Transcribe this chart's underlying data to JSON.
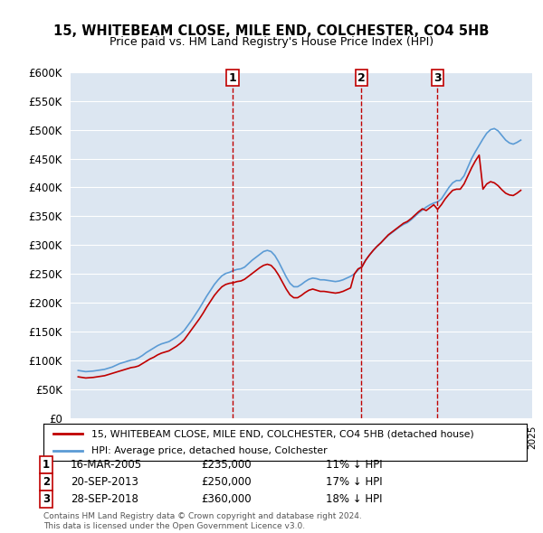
{
  "title": "15, WHITEBEAM CLOSE, MILE END, COLCHESTER, CO4 5HB",
  "subtitle": "Price paid vs. HM Land Registry's House Price Index (HPI)",
  "ylabel_ticks": [
    "£0",
    "£50K",
    "£100K",
    "£150K",
    "£200K",
    "£250K",
    "£300K",
    "£350K",
    "£400K",
    "£450K",
    "£500K",
    "£550K",
    "£600K"
  ],
  "ytick_vals": [
    0,
    50000,
    100000,
    150000,
    200000,
    250000,
    300000,
    350000,
    400000,
    450000,
    500000,
    550000,
    600000
  ],
  "hpi_color": "#5b9bd5",
  "price_color": "#c00000",
  "vline_color": "#c00000",
  "background_color": "#dce6f1",
  "legend_label_price": "15, WHITEBEAM CLOSE, MILE END, COLCHESTER, CO4 5HB (detached house)",
  "legend_label_hpi": "HPI: Average price, detached house, Colchester",
  "transactions": [
    {
      "num": 1,
      "date": "16-MAR-2005",
      "price": 235000,
      "pct": "11%",
      "dir": "↓",
      "x": 2005.21
    },
    {
      "num": 2,
      "date": "20-SEP-2013",
      "price": 250000,
      "pct": "17%",
      "dir": "↓",
      "x": 2013.72
    },
    {
      "num": 3,
      "date": "28-SEP-2018",
      "price": 360000,
      "pct": "18%",
      "dir": "↓",
      "x": 2018.74
    }
  ],
  "footer1": "Contains HM Land Registry data © Crown copyright and database right 2024.",
  "footer2": "This data is licensed under the Open Government Licence v3.0.",
  "hpi_data": {
    "years": [
      1995.0,
      1995.25,
      1995.5,
      1995.75,
      1996.0,
      1996.25,
      1996.5,
      1996.75,
      1997.0,
      1997.25,
      1997.5,
      1997.75,
      1998.0,
      1998.25,
      1998.5,
      1998.75,
      1999.0,
      1999.25,
      1999.5,
      1999.75,
      2000.0,
      2000.25,
      2000.5,
      2000.75,
      2001.0,
      2001.25,
      2001.5,
      2001.75,
      2002.0,
      2002.25,
      2002.5,
      2002.75,
      2003.0,
      2003.25,
      2003.5,
      2003.75,
      2004.0,
      2004.25,
      2004.5,
      2004.75,
      2005.0,
      2005.25,
      2005.5,
      2005.75,
      2006.0,
      2006.25,
      2006.5,
      2006.75,
      2007.0,
      2007.25,
      2007.5,
      2007.75,
      2008.0,
      2008.25,
      2008.5,
      2008.75,
      2009.0,
      2009.25,
      2009.5,
      2009.75,
      2010.0,
      2010.25,
      2010.5,
      2010.75,
      2011.0,
      2011.25,
      2011.5,
      2011.75,
      2012.0,
      2012.25,
      2012.5,
      2012.75,
      2013.0,
      2013.25,
      2013.5,
      2013.75,
      2014.0,
      2014.25,
      2014.5,
      2014.75,
      2015.0,
      2015.25,
      2015.5,
      2015.75,
      2016.0,
      2016.25,
      2016.5,
      2016.75,
      2017.0,
      2017.25,
      2017.5,
      2017.75,
      2018.0,
      2018.25,
      2018.5,
      2018.75,
      2019.0,
      2019.25,
      2019.5,
      2019.75,
      2020.0,
      2020.25,
      2020.5,
      2020.75,
      2021.0,
      2021.25,
      2021.5,
      2021.75,
      2022.0,
      2022.25,
      2022.5,
      2022.75,
      2023.0,
      2023.25,
      2023.5,
      2023.75,
      2024.0,
      2024.25
    ],
    "values": [
      83000,
      82000,
      81000,
      81500,
      82000,
      83000,
      84000,
      85000,
      87000,
      89000,
      92000,
      95000,
      97000,
      99000,
      101000,
      102000,
      105000,
      109000,
      114000,
      118000,
      122000,
      126000,
      129000,
      131000,
      133000,
      137000,
      141000,
      146000,
      152000,
      161000,
      170000,
      180000,
      190000,
      201000,
      212000,
      222000,
      232000,
      240000,
      247000,
      251000,
      253000,
      256000,
      258000,
      259000,
      262000,
      268000,
      274000,
      279000,
      284000,
      289000,
      291000,
      289000,
      282000,
      271000,
      258000,
      245000,
      234000,
      228000,
      228000,
      232000,
      237000,
      241000,
      243000,
      242000,
      240000,
      240000,
      239000,
      238000,
      237000,
      238000,
      240000,
      243000,
      246000,
      250000,
      257000,
      264000,
      274000,
      283000,
      291000,
      298000,
      304000,
      311000,
      317000,
      322000,
      327000,
      332000,
      336000,
      339000,
      344000,
      350000,
      356000,
      361000,
      366000,
      370000,
      373000,
      375000,
      380000,
      390000,
      400000,
      408000,
      412000,
      412000,
      420000,
      435000,
      450000,
      462000,
      473000,
      484000,
      494000,
      500000,
      502000,
      498000,
      490000,
      482000,
      477000,
      475000,
      478000,
      482000
    ]
  },
  "price_data": {
    "years": [
      1995.0,
      1995.25,
      1995.5,
      1995.75,
      1996.0,
      1996.25,
      1996.5,
      1996.75,
      1997.0,
      1997.25,
      1997.5,
      1997.75,
      1998.0,
      1998.25,
      1998.5,
      1998.75,
      1999.0,
      1999.25,
      1999.5,
      1999.75,
      2000.0,
      2000.25,
      2000.5,
      2000.75,
      2001.0,
      2001.25,
      2001.5,
      2001.75,
      2002.0,
      2002.25,
      2002.5,
      2002.75,
      2003.0,
      2003.25,
      2003.5,
      2003.75,
      2004.0,
      2004.25,
      2004.5,
      2004.75,
      2005.0,
      2005.25,
      2005.5,
      2005.75,
      2006.0,
      2006.25,
      2006.5,
      2006.75,
      2007.0,
      2007.25,
      2007.5,
      2007.75,
      2008.0,
      2008.25,
      2008.5,
      2008.75,
      2009.0,
      2009.25,
      2009.5,
      2009.75,
      2010.0,
      2010.25,
      2010.5,
      2010.75,
      2011.0,
      2011.25,
      2011.5,
      2011.75,
      2012.0,
      2012.25,
      2012.5,
      2012.75,
      2013.0,
      2013.25,
      2013.5,
      2013.75,
      2014.0,
      2014.25,
      2014.5,
      2014.75,
      2015.0,
      2015.25,
      2015.5,
      2015.75,
      2016.0,
      2016.25,
      2016.5,
      2016.75,
      2017.0,
      2017.25,
      2017.5,
      2017.75,
      2018.0,
      2018.25,
      2018.5,
      2018.75,
      2019.0,
      2019.25,
      2019.5,
      2019.75,
      2020.0,
      2020.25,
      2020.5,
      2020.75,
      2021.0,
      2021.25,
      2021.5,
      2021.75,
      2022.0,
      2022.25,
      2022.5,
      2022.75,
      2023.0,
      2023.25,
      2023.5,
      2023.75,
      2024.0,
      2024.25
    ],
    "values": [
      72000,
      71000,
      70000,
      70500,
      71000,
      72000,
      73000,
      74000,
      76000,
      78000,
      80000,
      82000,
      84000,
      86000,
      88000,
      89000,
      91000,
      95000,
      99000,
      103000,
      106000,
      110000,
      113000,
      115000,
      117000,
      121000,
      125000,
      130000,
      136000,
      145000,
      154000,
      163000,
      172000,
      182000,
      193000,
      203000,
      213000,
      221000,
      228000,
      232000,
      234000,
      235000,
      237000,
      238000,
      241000,
      246000,
      251000,
      256000,
      261000,
      265000,
      267000,
      265000,
      258000,
      248000,
      236000,
      224000,
      214000,
      209000,
      209000,
      213000,
      218000,
      222000,
      224000,
      222000,
      220000,
      220000,
      219000,
      218000,
      217000,
      218000,
      220000,
      223000,
      226000,
      250000,
      259000,
      262000,
      274000,
      283000,
      291000,
      298000,
      304000,
      311000,
      318000,
      323000,
      328000,
      333000,
      338000,
      341000,
      346000,
      352000,
      358000,
      363000,
      360000,
      365000,
      370000,
      362000,
      370000,
      380000,
      388000,
      395000,
      397000,
      397000,
      406000,
      420000,
      434000,
      446000,
      456000,
      397000,
      406000,
      410000,
      408000,
      403000,
      396000,
      390000,
      387000,
      386000,
      390000,
      395000
    ]
  }
}
